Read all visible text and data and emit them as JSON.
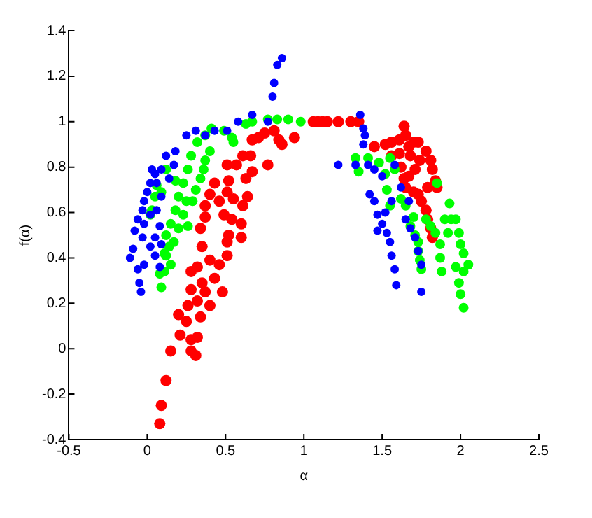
{
  "chart_data": {
    "type": "scatter",
    "xlabel": "α",
    "ylabel": "f(α)",
    "xlim": [
      -0.5,
      2.5
    ],
    "xticks": [
      -0.5,
      0,
      0.5,
      1,
      1.5,
      2,
      2.5
    ],
    "ylim": [
      -0.4,
      1.4
    ],
    "yticks": [
      -0.4,
      -0.2,
      0,
      0.2,
      0.4,
      0.6,
      0.8,
      1,
      1.2,
      1.4
    ],
    "grid": false,
    "marker": "circle",
    "series": [
      {
        "color": "#0000ff",
        "x": [
          -0.05,
          -0.04,
          -0.06,
          -0.11,
          -0.09,
          -0.08,
          -0.06,
          -0.03,
          -0.02,
          0,
          0.02,
          0.05,
          0.09,
          0.12,
          0.18,
          0.25,
          0.31,
          0.37,
          0.43,
          0.51,
          0.58,
          0.67,
          0.77,
          0.8,
          0.81,
          0.83,
          0.86,
          0.02,
          0.05,
          0.08,
          0.06,
          0.09,
          -0.02,
          0.02,
          0.05,
          0.08,
          -0.02,
          0.14,
          0.17,
          0.06,
          0.03,
          0.09,
          -0.03,
          1.36,
          1.38,
          1.39,
          1.38,
          1.22,
          1.33,
          1.41,
          1.45,
          1.5,
          1.42,
          1.45,
          1.47,
          1.5,
          1.53,
          1.55,
          1.56,
          1.58,
          1.59,
          1.65,
          1.68,
          1.71,
          1.73,
          1.75,
          1.75,
          1.67,
          1.62,
          1.58,
          1.47,
          1.52,
          1.56
        ],
        "values": [
          0.29,
          0.25,
          0.35,
          0.4,
          0.44,
          0.52,
          0.57,
          0.61,
          0.65,
          0.69,
          0.73,
          0.77,
          0.79,
          0.85,
          0.87,
          0.94,
          0.96,
          0.94,
          0.96,
          0.96,
          1,
          1.03,
          1,
          1.11,
          1.17,
          1.25,
          1.28,
          0.45,
          0.49,
          0.54,
          0.61,
          0.67,
          0.55,
          0.59,
          0.41,
          0.36,
          0.37,
          0.75,
          0.81,
          0.73,
          0.79,
          0.46,
          0.49,
          1.03,
          0.97,
          0.94,
          0.9,
          0.81,
          0.81,
          0.81,
          0.79,
          0.76,
          0.68,
          0.65,
          0.59,
          0.55,
          0.51,
          0.47,
          0.41,
          0.35,
          0.28,
          0.57,
          0.53,
          0.49,
          0.43,
          0.37,
          0.25,
          0.65,
          0.71,
          0.81,
          0.52,
          0.6,
          0.65
        ]
      },
      {
        "color": "#00ff00",
        "x": [
          0.09,
          0.08,
          0.11,
          0.12,
          0.14,
          0.12,
          0.15,
          0.18,
          0.2,
          0.23,
          0.26,
          0.28,
          0.32,
          0.37,
          0.41,
          0.49,
          0.54,
          0.55,
          0.03,
          0.05,
          0.06,
          0.02,
          0.12,
          0.18,
          0.23,
          0.26,
          0.29,
          0.34,
          0.37,
          0.4,
          0.17,
          0.2,
          0.25,
          0.31,
          0.36,
          0.15,
          0.11,
          0.09,
          0.67,
          0.77,
          0.83,
          0.9,
          0.98,
          0.63,
          1.33,
          1.35,
          1.41,
          1.48,
          1.52,
          1.55,
          1.58,
          1.53,
          1.55,
          1.62,
          1.65,
          1.7,
          1.68,
          1.71,
          1.73,
          1.73,
          1.74,
          1.75,
          1.78,
          1.81,
          1.84,
          1.87,
          1.88,
          1.87,
          1.85,
          1.93,
          1.94,
          1.97,
          1.99,
          2,
          2.02,
          2.05,
          2.02,
          1.99,
          2,
          2.02,
          1.9,
          1.92,
          1.97
        ],
        "values": [
          0.27,
          0.33,
          0.34,
          0.41,
          0.45,
          0.5,
          0.55,
          0.61,
          0.67,
          0.73,
          0.79,
          0.85,
          0.91,
          0.94,
          0.97,
          0.96,
          0.93,
          0.91,
          0.61,
          0.67,
          0.72,
          0.59,
          0.79,
          0.74,
          0.59,
          0.54,
          0.65,
          0.75,
          0.83,
          0.87,
          0.47,
          0.53,
          0.65,
          0.7,
          0.79,
          0.37,
          0.42,
          0.69,
          1,
          1.01,
          1.01,
          1.01,
          1,
          0.99,
          0.84,
          0.78,
          0.84,
          0.82,
          0.77,
          0.84,
          0.79,
          0.7,
          0.63,
          0.66,
          0.63,
          0.58,
          0.54,
          0.5,
          0.47,
          0.43,
          0.39,
          0.35,
          0.57,
          0.54,
          0.51,
          0.46,
          0.34,
          0.4,
          0.73,
          0.64,
          0.57,
          0.57,
          0.51,
          0.46,
          0.42,
          0.37,
          0.34,
          0.29,
          0.24,
          0.18,
          0.57,
          0.51,
          0.36
        ]
      },
      {
        "color": "#ff0000",
        "x": [
          0.08,
          0.09,
          0.12,
          0.15,
          0.28,
          0.31,
          0.28,
          0.32,
          0.21,
          0.2,
          0.25,
          0.26,
          0.32,
          0.34,
          0.4,
          0.28,
          0.35,
          0.28,
          0.32,
          0.37,
          0.43,
          0.48,
          0.4,
          0.46,
          0.51,
          0.35,
          0.34,
          0.37,
          0.37,
          0.4,
          0.43,
          0.46,
          0.49,
          0.52,
          0.51,
          0.54,
          0.51,
          0.55,
          0.52,
          0.51,
          0.57,
          0.61,
          0.63,
          0.61,
          0.6,
          0.6,
          0.64,
          0.67,
          0.66,
          0.77,
          0.67,
          0.71,
          0.75,
          0.81,
          0.84,
          0.86,
          0.94,
          1.06,
          1.09,
          1.12,
          1.15,
          1.22,
          1.3,
          1.35,
          1.45,
          1.52,
          1.56,
          1.61,
          1.64,
          1.65,
          1.67,
          1.7,
          1.73,
          1.78,
          1.81,
          1.82,
          1.84,
          1.85,
          1.79,
          1.61,
          1.62,
          1.64,
          1.65,
          1.67,
          1.7,
          1.71,
          1.73,
          1.75,
          1.78,
          1.79,
          1.81,
          1.82,
          1.74,
          1.56,
          1.68
        ],
        "values": [
          -0.33,
          -0.25,
          -0.14,
          -0.01,
          -0.01,
          -0.03,
          0.04,
          0.05,
          0.06,
          0.15,
          0.12,
          0.19,
          0.21,
          0.14,
          0.19,
          0.26,
          0.29,
          0.34,
          0.36,
          0.25,
          0.31,
          0.25,
          0.39,
          0.37,
          0.41,
          0.45,
          0.53,
          0.58,
          0.63,
          0.68,
          0.73,
          0.65,
          0.59,
          0.5,
          0.47,
          0.57,
          0.69,
          0.66,
          0.74,
          0.81,
          0.81,
          0.85,
          0.75,
          0.63,
          0.55,
          0.49,
          0.67,
          0.78,
          0.85,
          0.81,
          0.92,
          0.93,
          0.95,
          0.96,
          0.92,
          0.9,
          0.93,
          1,
          1,
          1,
          1,
          1,
          1,
          1,
          0.89,
          0.9,
          0.91,
          0.92,
          0.98,
          0.94,
          0.89,
          0.91,
          0.91,
          0.87,
          0.83,
          0.79,
          0.74,
          0.71,
          0.71,
          0.86,
          0.8,
          0.75,
          0.71,
          0.76,
          0.69,
          0.79,
          0.68,
          0.65,
          0.61,
          0.57,
          0.53,
          0.49,
          0.83,
          0.85,
          0.85
        ]
      }
    ]
  }
}
